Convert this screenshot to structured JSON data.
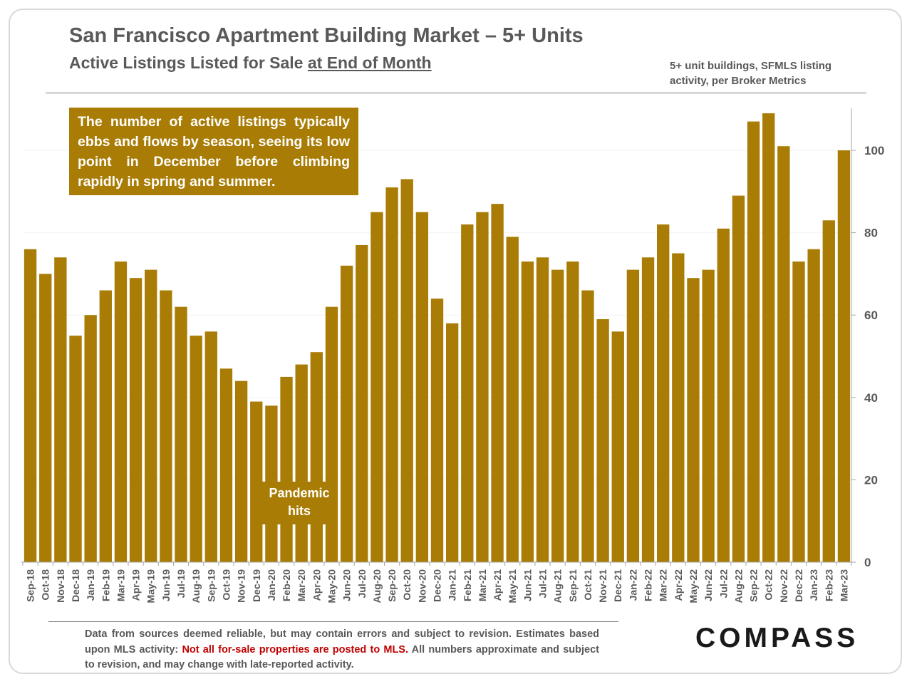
{
  "header": {
    "title": "San Francisco Apartment Building Market – 5+ Units",
    "subtitle_prefix": "Active Listings Listed for Sale ",
    "subtitle_underlined": "at End of Month",
    "note": "5+ unit buildings, SFMLS listing activity, per Broker Metrics"
  },
  "callout": "The number of active listings typically ebbs and flows by season, seeing its low point in December before climbing rapidly in spring and summer.",
  "annotation": {
    "line1": "Pandemic",
    "line2": "hits"
  },
  "footer": {
    "text_before": "Data from sources deemed reliable, but may contain errors and subject to revision. Estimates based upon MLS activity: ",
    "warning": "Not all for-sale properties are posted to MLS.",
    "text_after": " All numbers approximate and subject to revision, and may change with late-reported activity."
  },
  "logo": "COMPASS",
  "colors": {
    "bar": "#a97c05",
    "text": "#595959",
    "warning": "#c00000"
  },
  "chart_data": {
    "type": "bar",
    "title": "Active Listings Listed for Sale at End of Month",
    "xlabel": "",
    "ylabel": "",
    "ylim": [
      0,
      110
    ],
    "yticks": [
      0,
      20,
      40,
      60,
      80,
      100
    ],
    "y_axis_side": "right",
    "grid": true,
    "categories": [
      "Sep-18",
      "Oct-18",
      "Nov-18",
      "Dec-18",
      "Jan-19",
      "Feb-19",
      "Mar-19",
      "Apr-19",
      "May-19",
      "Jun-19",
      "Jul-19",
      "Aug-19",
      "Sep-19",
      "Oct-19",
      "Nov-19",
      "Dec-19",
      "Jan-20",
      "Feb-20",
      "Mar-20",
      "Apr-20",
      "May-20",
      "Jun-20",
      "Jul-20",
      "Aug-20",
      "Sep-20",
      "Oct-20",
      "Nov-20",
      "Dec-20",
      "Jan-21",
      "Feb-21",
      "Mar-21",
      "Apr-21",
      "May-21",
      "Jun-21",
      "Jul-21",
      "Aug-21",
      "Sep-21",
      "Oct-21",
      "Nov-21",
      "Dec-21",
      "Jan-22",
      "Feb-22",
      "Mar-22",
      "Apr-22",
      "May-22",
      "Jun-22",
      "Jul-22",
      "Aug-22",
      "Sep-22",
      "Oct-22",
      "Nov-22",
      "Dec-22",
      "Jan-23",
      "Feb-23",
      "Mar-23"
    ],
    "values": [
      76,
      70,
      74,
      55,
      60,
      66,
      73,
      69,
      71,
      66,
      62,
      55,
      56,
      47,
      44,
      39,
      38,
      45,
      48,
      51,
      62,
      72,
      77,
      85,
      91,
      93,
      85,
      64,
      58,
      82,
      85,
      87,
      79,
      73,
      74,
      71,
      73,
      66,
      59,
      56,
      71,
      74,
      82,
      75,
      69,
      71,
      81,
      89,
      107,
      109,
      101,
      73,
      76,
      83,
      100
    ]
  }
}
